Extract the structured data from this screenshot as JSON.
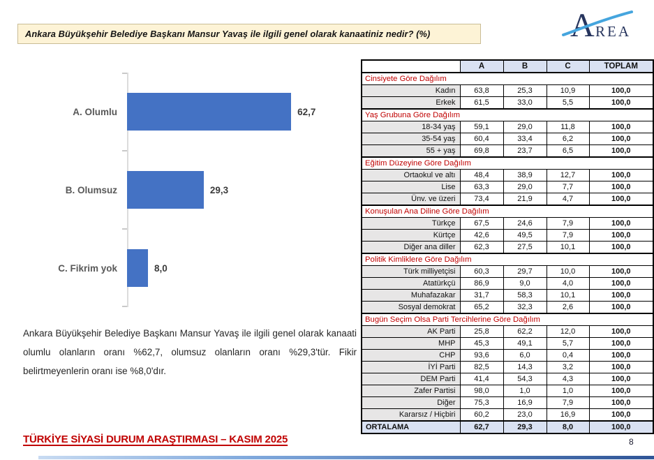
{
  "title_bar": {
    "text": "Ankara Büyükşehir Belediye Başkanı Mansur Yavaş ile ilgili genel olarak kanaatiniz nedir? (%)"
  },
  "logo": {
    "letter": "A",
    "rest": "REA"
  },
  "chart_data": {
    "type": "bar",
    "orientation": "horizontal",
    "title": "",
    "xlabel": "",
    "ylabel": "",
    "categories": [
      "A. Olumlu",
      "B. Olumsuz",
      "C. Fikrim yok"
    ],
    "values": [
      62.7,
      29.3,
      8.0
    ],
    "value_labels": [
      "62,7",
      "29,3",
      "8,0"
    ],
    "xlim": [
      0,
      70
    ],
    "grid": false,
    "legend": false
  },
  "summary": {
    "text": "Ankara Büyükşehir Belediye Başkanı Mansur Yavaş ile ilgili genel olarak kanaati olumlu olanların oranı %62,7, olumsuz olanların oranı %29,3'tür. Fikir belirtmeyenlerin oranı ise %8,0'dır."
  },
  "table": {
    "columns": [
      "",
      "A",
      "B",
      "C",
      "TOPLAM"
    ],
    "groups": [
      {
        "title": "Cinsiyete Göre Dağılım",
        "rows": [
          {
            "label": "Kadın",
            "values": [
              "63,8",
              "25,3",
              "10,9",
              "100,0"
            ]
          },
          {
            "label": "Erkek",
            "values": [
              "61,5",
              "33,0",
              "5,5",
              "100,0"
            ]
          }
        ]
      },
      {
        "title": "Yaş Grubuna Göre Dağılım",
        "rows": [
          {
            "label": "18-34 yaş",
            "values": [
              "59,1",
              "29,0",
              "11,8",
              "100,0"
            ]
          },
          {
            "label": "35-54 yaş",
            "values": [
              "60,4",
              "33,4",
              "6,2",
              "100,0"
            ]
          },
          {
            "label": "55 + yaş",
            "values": [
              "69,8",
              "23,7",
              "6,5",
              "100,0"
            ]
          }
        ]
      },
      {
        "title": "Eğitim Düzeyine Göre Dağılım",
        "rows": [
          {
            "label": "Ortaokul ve altı",
            "values": [
              "48,4",
              "38,9",
              "12,7",
              "100,0"
            ]
          },
          {
            "label": "Lise",
            "values": [
              "63,3",
              "29,0",
              "7,7",
              "100,0"
            ]
          },
          {
            "label": "Ünv. ve üzeri",
            "values": [
              "73,4",
              "21,9",
              "4,7",
              "100,0"
            ]
          }
        ]
      },
      {
        "title": "Konuşulan Ana Diline Göre Dağılım",
        "rows": [
          {
            "label": "Türkçe",
            "values": [
              "67,5",
              "24,6",
              "7,9",
              "100,0"
            ]
          },
          {
            "label": "Kürtçe",
            "values": [
              "42,6",
              "49,5",
              "7,9",
              "100,0"
            ]
          },
          {
            "label": "Diğer ana diller",
            "values": [
              "62,3",
              "27,5",
              "10,1",
              "100,0"
            ]
          }
        ]
      },
      {
        "title": "Politik Kimliklere Göre Dağılım",
        "rows": [
          {
            "label": "Türk milliyetçisi",
            "values": [
              "60,3",
              "29,7",
              "10,0",
              "100,0"
            ]
          },
          {
            "label": "Atatürkçü",
            "values": [
              "86,9",
              "9,0",
              "4,0",
              "100,0"
            ]
          },
          {
            "label": "Muhafazakar",
            "values": [
              "31,7",
              "58,3",
              "10,1",
              "100,0"
            ]
          },
          {
            "label": "Sosyal demokrat",
            "values": [
              "65,2",
              "32,3",
              "2,6",
              "100,0"
            ]
          }
        ]
      },
      {
        "title": "Bugün Seçim Olsa Parti Tercihlerine Göre Dağılım",
        "rows": [
          {
            "label": "AK Parti",
            "values": [
              "25,8",
              "62,2",
              "12,0",
              "100,0"
            ]
          },
          {
            "label": "MHP",
            "values": [
              "45,3",
              "49,1",
              "5,7",
              "100,0"
            ]
          },
          {
            "label": "CHP",
            "values": [
              "93,6",
              "6,0",
              "0,4",
              "100,0"
            ]
          },
          {
            "label": "İYİ Parti",
            "values": [
              "82,5",
              "14,3",
              "3,2",
              "100,0"
            ]
          },
          {
            "label": "DEM Parti",
            "values": [
              "41,4",
              "54,3",
              "4,3",
              "100,0"
            ]
          },
          {
            "label": "Zafer Partisi",
            "values": [
              "98,0",
              "1,0",
              "1,0",
              "100,0"
            ]
          },
          {
            "label": "Diğer",
            "values": [
              "75,3",
              "16,9",
              "7,9",
              "100,0"
            ]
          },
          {
            "label": "Kararsız / Hiçbiri",
            "values": [
              "60,2",
              "23,0",
              "16,9",
              "100,0"
            ]
          }
        ]
      }
    ],
    "average_row": {
      "label": "ORTALAMA",
      "values": [
        "62,7",
        "29,3",
        "8,0",
        "100,0"
      ]
    }
  },
  "footer": {
    "title": "TÜRKİYE SİYASİ DURUM ARAŞTIRMASI – KASIM 2025",
    "page": "8"
  },
  "colors": {
    "bar": "#4472C4",
    "red": "#C00000",
    "table_header_bg": "#D9E1F2",
    "label_cell_bg": "#E7E6E6",
    "title_bar_bg": "#FDF3D6",
    "logo_navy": "#27355E",
    "logo_swoosh": "#45A5DE"
  }
}
